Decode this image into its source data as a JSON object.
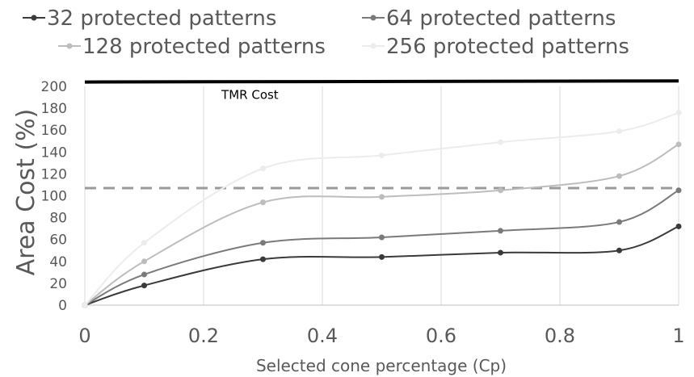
{
  "chart_data": {
    "type": "line",
    "xlabel": "Selected cone percentage (Cp)",
    "ylabel": "Area Cost (%)",
    "xlim": [
      0,
      1
    ],
    "ylim": [
      0,
      200
    ],
    "x_ticks": [
      "0",
      "0.2",
      "0.4",
      "0.6",
      "0.8",
      "1"
    ],
    "y_ticks": [
      "0",
      "20",
      "40",
      "60",
      "80",
      "100",
      "120",
      "140",
      "160",
      "180",
      "200"
    ],
    "grid": "vertical",
    "legend_position": "top",
    "x": [
      0,
      0.1,
      0.3,
      0.5,
      0.7,
      0.9,
      1.0
    ],
    "series": [
      {
        "name": "32  protected patterns",
        "color": "#3a3a3a",
        "values": [
          0,
          18,
          42,
          44,
          48,
          50,
          72
        ]
      },
      {
        "name": "64 protected patterns",
        "color": "#7a7a7a",
        "values": [
          0,
          28,
          57,
          62,
          68,
          76,
          105
        ]
      },
      {
        "name": "128 protected patterns",
        "color": "#bdbdbd",
        "values": [
          0,
          40,
          94,
          99,
          105,
          118,
          147
        ]
      },
      {
        "name": "256 protected patterns",
        "color": "#ececec",
        "values": [
          0,
          57,
          125,
          137,
          149,
          159,
          176
        ]
      }
    ],
    "reference_lines": [
      {
        "label": "TMR Cost",
        "y_start": 204,
        "y_end": 205,
        "color": "#000000",
        "style": "solid"
      },
      {
        "label": "",
        "y_start": 107,
        "y_end": 107,
        "color": "#9a9a9a",
        "style": "dashed"
      }
    ]
  }
}
